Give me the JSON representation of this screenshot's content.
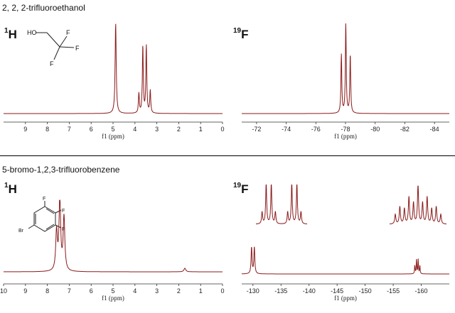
{
  "sections": [
    {
      "title": "2, 2, 2-trifluoroethanol",
      "nucleus_h": {
        "sup": "1",
        "sym": "H"
      },
      "nucleus_f": {
        "sup": "19",
        "sym": "F"
      }
    },
    {
      "title": "5-bromo-1,2,3-trifluorobenzene",
      "nucleus_h": {
        "sup": "1",
        "sym": "H"
      },
      "nucleus_f": {
        "sup": "19",
        "sym": "F"
      }
    }
  ],
  "molecules": {
    "tfe": {
      "oh": "HO",
      "f1": "F",
      "f2": "F",
      "f3": "F"
    },
    "tfb": {
      "f1": "F",
      "f2": "F",
      "f3": "F",
      "br": "Br"
    }
  },
  "colors": {
    "spectrum": "#8b1a1a"
  },
  "chart_data": [
    {
      "type": "line",
      "id": "tfe-1H",
      "xlabel": "f1 (ppm)",
      "xlim": [
        10,
        0
      ],
      "xticks": [
        9,
        8,
        7,
        6,
        5,
        4,
        3,
        2,
        1,
        0
      ],
      "peaks": [
        {
          "ppm": 4.88,
          "height": 1.0,
          "width": 0.03
        },
        {
          "ppm": 3.82,
          "height": 0.22,
          "width": 0.025
        },
        {
          "ppm": 3.64,
          "height": 0.75,
          "width": 0.025
        },
        {
          "ppm": 3.48,
          "height": 0.75,
          "width": 0.025
        },
        {
          "ppm": 3.3,
          "height": 0.25,
          "width": 0.025
        }
      ]
    },
    {
      "type": "line",
      "id": "tfe-19F",
      "xlabel": "f1 (ppm)",
      "xlim": [
        -71,
        -85
      ],
      "xticks": [
        -72,
        -74,
        -76,
        -78,
        -80,
        -82,
        -84
      ],
      "peaks": [
        {
          "ppm": -77.72,
          "height": 0.65,
          "width": 0.035
        },
        {
          "ppm": -78.02,
          "height": 1.0,
          "width": 0.035
        },
        {
          "ppm": -78.32,
          "height": 0.65,
          "width": 0.035
        }
      ]
    },
    {
      "type": "line",
      "id": "tfb-1H",
      "xlabel": "f1 (ppm)",
      "xlim": [
        10,
        0
      ],
      "xticks": [
        10,
        9,
        8,
        7,
        6,
        5,
        4,
        3,
        2,
        1,
        0
      ],
      "peaks": [
        {
          "ppm": 7.58,
          "height": 0.55,
          "width": 0.045
        },
        {
          "ppm": 7.43,
          "height": 1.0,
          "width": 0.045
        },
        {
          "ppm": 7.24,
          "height": 0.75,
          "width": 0.045
        },
        {
          "ppm": 1.72,
          "height": 0.05,
          "width": 0.05
        }
      ]
    },
    {
      "type": "line",
      "id": "tfb-19F",
      "xlabel": "f1 (ppm)",
      "xlim": [
        -128,
        -165
      ],
      "xticks": [
        -130,
        -135,
        -140,
        -145,
        -150,
        -155,
        -160
      ],
      "peaks": [
        {
          "ppm": -129.75,
          "height": 0.55,
          "width": 0.1
        },
        {
          "ppm": -130.25,
          "height": 0.55,
          "width": 0.1
        },
        {
          "ppm": -158.85,
          "height": 0.17,
          "width": 0.06
        },
        {
          "ppm": -159.15,
          "height": 0.3,
          "width": 0.06
        },
        {
          "ppm": -159.45,
          "height": 0.3,
          "width": 0.06
        },
        {
          "ppm": -159.75,
          "height": 0.17,
          "width": 0.06
        }
      ],
      "insets": [
        {
          "peaks_rel": [
            0.12,
            0.2,
            0.3,
            0.38,
            0.62,
            0.7,
            0.8,
            0.88
          ],
          "heights": [
            0.3,
            1.0,
            1.0,
            0.3,
            0.3,
            1.0,
            1.0,
            0.3
          ]
        },
        {
          "peaks_rel": [
            0.1,
            0.18,
            0.26,
            0.34,
            0.42,
            0.5,
            0.58,
            0.66,
            0.74,
            0.82,
            0.9
          ],
          "heights": [
            0.25,
            0.45,
            0.4,
            0.7,
            0.55,
            1.0,
            0.55,
            0.7,
            0.4,
            0.45,
            0.25
          ]
        }
      ]
    }
  ]
}
